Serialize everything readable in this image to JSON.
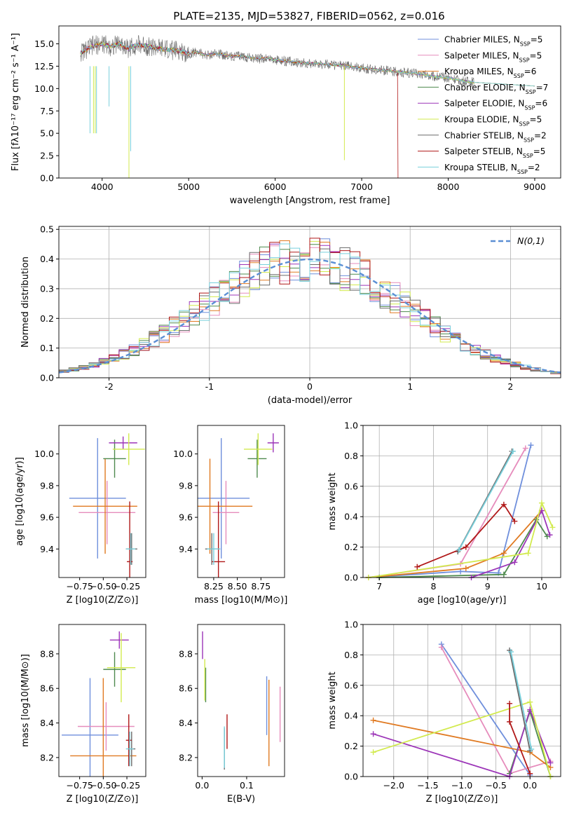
{
  "figure": {
    "title": "PLATE=2135, MJD=53827, FIBERID=0562, z=0.016"
  },
  "series": [
    {
      "name": "Chabrier MILES, N",
      "n": "5",
      "color": "#6f8fdc"
    },
    {
      "name": "Salpeter MILES, N",
      "n": "5",
      "color": "#e68cbc"
    },
    {
      "name": "Kroupa MILES, N",
      "n": "6",
      "color": "#e07a22"
    },
    {
      "name": "Chabrier ELODIE, N",
      "n": "7",
      "color": "#4e8a4e"
    },
    {
      "name": "Salpeter ELODIE, N",
      "n": "6",
      "color": "#9c35b8"
    },
    {
      "name": "Kroupa ELODIE, N",
      "n": "5",
      "color": "#d2ea4e"
    },
    {
      "name": "Chabrier STELIB, N",
      "n": "2",
      "color": "#6b6b6b"
    },
    {
      "name": "Salpeter STELIB, N",
      "n": "5",
      "color": "#b01818"
    },
    {
      "name": "Kroupa STELIB, N",
      "n": "2",
      "color": "#78d0dc"
    }
  ],
  "legend_sub": "SSP",
  "chart_data": [
    {
      "type": "line",
      "xlabel": "wavelength [Angstrom, rest frame]",
      "ylabel": "Flux [fλ10⁻¹⁷ erg cm⁻² s⁻¹ A⁻¹]",
      "xlim": [
        3500,
        9300
      ],
      "ylim": [
        0,
        17
      ],
      "xticks": [
        4000,
        5000,
        6000,
        7000,
        8000,
        9000
      ],
      "yticks": [
        0.0,
        2.5,
        5.0,
        7.5,
        10.0,
        12.5,
        15.0
      ],
      "x": [
        3750,
        3900,
        4000,
        4100,
        4200,
        4300,
        4400,
        4500,
        4600,
        4700,
        4800,
        4900,
        5000,
        5100,
        5200,
        5300,
        5400,
        5500,
        5600,
        5700,
        5800,
        5900,
        6000,
        6100,
        6200,
        6300,
        6400,
        6500,
        6600,
        6700,
        6800,
        6900,
        7000,
        7100,
        7200,
        7300,
        7400,
        7500,
        7600,
        7700,
        7800,
        7900,
        8000,
        8100,
        8200,
        8300
      ],
      "y": [
        14.0,
        14.8,
        15.0,
        14.7,
        15.0,
        14.5,
        14.9,
        14.8,
        14.6,
        14.4,
        14.3,
        14.2,
        13.9,
        14.1,
        13.7,
        13.9,
        13.8,
        13.6,
        13.6,
        13.5,
        13.3,
        13.4,
        13.2,
        13.1,
        13.0,
        12.9,
        12.8,
        12.8,
        12.7,
        12.6,
        12.6,
        12.4,
        12.3,
        12.2,
        12.1,
        12.0,
        11.9,
        11.8,
        11.7,
        11.6,
        11.4,
        11.3,
        11.2,
        11.0,
        10.8,
        10.7
      ]
    },
    {
      "type": "bar",
      "xlabel": "(data-model)/error",
      "ylabel": "Normed distribution",
      "xlim": [
        -2.5,
        2.5
      ],
      "ylim": [
        0,
        0.51
      ],
      "xticks": [
        -2,
        -1,
        0,
        1,
        2
      ],
      "yticks": [
        0.0,
        0.1,
        0.2,
        0.3,
        0.4,
        0.5
      ],
      "bin_width": 0.1,
      "bins_start": -2.5,
      "legend": "N(0,1)",
      "reference_curve": "gaussian mean 0 sigma 1"
    },
    {
      "type": "scatter",
      "name": "age vs Z",
      "xlabel": "Z [log10(Z/Z⊙)]",
      "ylabel": "age  [log10(age/yr)]",
      "xlim": [
        -0.97,
        -0.05
      ],
      "ylim": [
        9.22,
        10.18
      ],
      "xticks": [
        -0.75,
        -0.5,
        -0.25
      ],
      "yticks": [
        9.4,
        9.6,
        9.8,
        10.0
      ],
      "points": [
        {
          "s": 0,
          "x": -0.56,
          "y": 9.72,
          "xerr": 0.3,
          "yerr": 0.38
        },
        {
          "s": 1,
          "x": -0.46,
          "y": 9.63,
          "xerr": 0.3,
          "yerr": 0.2
        },
        {
          "s": 2,
          "x": -0.48,
          "y": 9.67,
          "xerr": 0.34,
          "yerr": 0.3
        },
        {
          "s": 3,
          "x": -0.38,
          "y": 9.97,
          "xerr": 0.12,
          "yerr": 0.12
        },
        {
          "s": 4,
          "x": -0.29,
          "y": 10.07,
          "xerr": 0.15,
          "yerr": 0.04
        },
        {
          "s": 5,
          "x": -0.23,
          "y": 10.03,
          "xerr": 0.17,
          "yerr": 0.1
        },
        {
          "s": 6,
          "x": -0.2,
          "y": 9.4,
          "xerr": 0.06,
          "yerr": 0.1
        },
        {
          "s": 7,
          "x": -0.22,
          "y": 9.32,
          "xerr": 0.03,
          "yerr": 0.38
        },
        {
          "s": 8,
          "x": -0.21,
          "y": 9.4,
          "xerr": 0.05,
          "yerr": 0.1
        }
      ]
    },
    {
      "type": "scatter",
      "name": "age vs mass",
      "xlabel": "mass [log10(M/M⊙)]",
      "ylabel": "",
      "xlim": [
        8.08,
        9.0
      ],
      "ylim": [
        9.22,
        10.18
      ],
      "xticks": [
        8.25,
        8.5,
        8.75
      ],
      "yticks": [
        9.4,
        9.6,
        9.8,
        10.0
      ],
      "points": [
        {
          "s": 0,
          "x": 8.33,
          "y": 9.72,
          "xerr": 0.3,
          "yerr": 0.38
        },
        {
          "s": 1,
          "x": 8.38,
          "y": 9.63,
          "xerr": 0.14,
          "yerr": 0.2
        },
        {
          "s": 2,
          "x": 8.21,
          "y": 9.67,
          "xerr": 0.45,
          "yerr": 0.3
        },
        {
          "s": 3,
          "x": 8.71,
          "y": 9.97,
          "xerr": 0.1,
          "yerr": 0.12
        },
        {
          "s": 4,
          "x": 8.88,
          "y": 10.07,
          "xerr": 0.06,
          "yerr": 0.06
        },
        {
          "s": 5,
          "x": 8.72,
          "y": 10.03,
          "xerr": 0.15,
          "yerr": 0.1
        },
        {
          "s": 6,
          "x": 8.23,
          "y": 9.4,
          "xerr": 0.07,
          "yerr": 0.1
        },
        {
          "s": 7,
          "x": 8.3,
          "y": 9.32,
          "xerr": 0.07,
          "yerr": 0.38
        },
        {
          "s": 8,
          "x": 8.25,
          "y": 9.4,
          "xerr": 0.07,
          "yerr": 0.1
        }
      ]
    },
    {
      "type": "line",
      "name": "mass weight vs age",
      "xlabel": "age  [log10(age/yr)]",
      "ylabel": "mass weight",
      "xlim": [
        6.7,
        10.35
      ],
      "ylim": [
        0,
        1
      ],
      "xticks": [
        7,
        8,
        9,
        10
      ],
      "yticks": [
        0.0,
        0.2,
        0.4,
        0.6,
        0.8,
        1.0
      ],
      "series": [
        {
          "s": 0,
          "x": [
            6.8,
            8.5,
            9.2,
            9.8
          ],
          "y": [
            0.0,
            0.04,
            0.03,
            0.87
          ]
        },
        {
          "s": 1,
          "x": [
            6.8,
            8.5,
            9.7
          ],
          "y": [
            0.0,
            0.09,
            0.85
          ]
        },
        {
          "s": 2,
          "x": [
            6.8,
            8.6,
            9.3,
            10.0
          ],
          "y": [
            0.0,
            0.06,
            0.16,
            0.44
          ]
        },
        {
          "s": 3,
          "x": [
            7.0,
            9.3,
            9.9,
            10.1
          ],
          "y": [
            0.0,
            0.02,
            0.38,
            0.27
          ]
        },
        {
          "s": 4,
          "x": [
            8.7,
            9.5,
            10.0,
            10.15
          ],
          "y": [
            0.0,
            0.1,
            0.44,
            0.28
          ]
        },
        {
          "s": 5,
          "x": [
            6.8,
            9.75,
            10.0,
            10.2
          ],
          "y": [
            0.0,
            0.16,
            0.49,
            0.33
          ]
        },
        {
          "s": 6,
          "x": [
            8.45,
            9.45
          ],
          "y": [
            0.17,
            0.83
          ]
        },
        {
          "s": 7,
          "x": [
            7.7,
            8.6,
            9.3,
            9.5
          ],
          "y": [
            0.07,
            0.2,
            0.48,
            0.37
          ]
        },
        {
          "s": 8,
          "x": [
            8.47,
            9.47
          ],
          "y": [
            0.18,
            0.83
          ]
        }
      ]
    },
    {
      "type": "scatter",
      "name": "mass vs Z",
      "xlabel": "Z [log10(Z/Z⊙)]",
      "ylabel": "mass [log10(M/M⊙)]",
      "xlim": [
        -0.97,
        -0.05
      ],
      "ylim": [
        8.09,
        8.97
      ],
      "xticks": [
        -0.75,
        -0.5,
        -0.25
      ],
      "yticks": [
        8.2,
        8.4,
        8.6,
        8.8
      ],
      "points": [
        {
          "s": 0,
          "x": -0.64,
          "y": 8.33,
          "xerr": 0.3,
          "yerr": 0.33
        },
        {
          "s": 1,
          "x": -0.47,
          "y": 8.38,
          "xerr": 0.3,
          "yerr": 0.14
        },
        {
          "s": 2,
          "x": -0.5,
          "y": 8.21,
          "xerr": 0.35,
          "yerr": 0.45
        },
        {
          "s": 3,
          "x": -0.38,
          "y": 8.71,
          "xerr": 0.12,
          "yerr": 0.1
        },
        {
          "s": 4,
          "x": -0.33,
          "y": 8.88,
          "xerr": 0.1,
          "yerr": 0.05
        },
        {
          "s": 5,
          "x": -0.31,
          "y": 8.72,
          "xerr": 0.15,
          "yerr": 0.2
        },
        {
          "s": 6,
          "x": -0.2,
          "y": 8.25,
          "xerr": 0.04,
          "yerr": 0.1
        },
        {
          "s": 7,
          "x": -0.23,
          "y": 8.3,
          "xerr": 0.03,
          "yerr": 0.15
        },
        {
          "s": 8,
          "x": -0.22,
          "y": 8.25,
          "xerr": 0.04,
          "yerr": 0.1
        }
      ]
    },
    {
      "type": "scatter",
      "name": "mass vs E(B-V)",
      "xlabel": "E(B-V)",
      "ylabel": "",
      "xlim": [
        -0.01,
        0.185
      ],
      "ylim": [
        8.09,
        8.97
      ],
      "xticks": [
        0.0,
        0.1
      ],
      "yticks": [
        8.2,
        8.4,
        8.6,
        8.8
      ],
      "points": [
        {
          "s": 0,
          "x": 0.145,
          "y": 8.5,
          "xerr": 0,
          "yerr": 0.17
        },
        {
          "s": 1,
          "x": 0.175,
          "y": 8.45,
          "xerr": 0,
          "yerr": 0.16
        },
        {
          "s": 2,
          "x": 0.15,
          "y": 8.4,
          "xerr": 0,
          "yerr": 0.25
        },
        {
          "s": 3,
          "x": 0.008,
          "y": 8.62,
          "xerr": 0,
          "yerr": 0.1
        },
        {
          "s": 4,
          "x": 0.001,
          "y": 8.85,
          "xerr": 0,
          "yerr": 0.08
        },
        {
          "s": 5,
          "x": 0.006,
          "y": 8.65,
          "xerr": 0,
          "yerr": 0.12
        },
        {
          "s": 6,
          "x": 0.05,
          "y": 8.25,
          "xerr": 0,
          "yerr": 0.12
        },
        {
          "s": 7,
          "x": 0.056,
          "y": 8.35,
          "xerr": 0,
          "yerr": 0.1
        },
        {
          "s": 8,
          "x": 0.05,
          "y": 8.26,
          "xerr": 0,
          "yerr": 0.12
        }
      ]
    },
    {
      "type": "line",
      "name": "mass weight vs Z",
      "xlabel": "Z [log10(Z/Z⊙)]",
      "ylabel": "mass weight",
      "xlim": [
        -2.45,
        0.45
      ],
      "ylim": [
        0,
        1
      ],
      "xticks": [
        -2.0,
        -1.5,
        -1.0,
        -0.5,
        0.0
      ],
      "yticks": [
        0.0,
        0.2,
        0.4,
        0.6,
        0.8,
        1.0
      ],
      "series": [
        {
          "s": 0,
          "x": [
            -1.3,
            0.0
          ],
          "y": [
            0.87,
            0.01
          ]
        },
        {
          "s": 1,
          "x": [
            -1.3,
            -0.3,
            0.3
          ],
          "y": [
            0.85,
            0.02,
            0.1
          ]
        },
        {
          "s": 2,
          "x": [
            -2.3,
            0.0,
            0.3
          ],
          "y": [
            0.37,
            0.16,
            0.06
          ]
        },
        {
          "s": 3,
          "x": [
            -0.3,
            0.0,
            0.3
          ],
          "y": [
            0.02,
            0.43,
            0.0
          ]
        },
        {
          "s": 4,
          "x": [
            -2.3,
            -0.3,
            0.0,
            0.3
          ],
          "y": [
            0.28,
            0.0,
            0.44,
            0.09
          ]
        },
        {
          "s": 5,
          "x": [
            -2.3,
            0.0,
            0.3
          ],
          "y": [
            0.16,
            0.49,
            0.0
          ]
        },
        {
          "s": 6,
          "x": [
            -0.3,
            0.0
          ],
          "y": [
            0.83,
            0.17
          ]
        },
        {
          "s": 7,
          "x": [
            -0.3,
            -0.3,
            0.0
          ],
          "y": [
            0.48,
            0.36,
            0.02
          ]
        },
        {
          "s": 8,
          "x": [
            -0.28,
            0.02
          ],
          "y": [
            0.82,
            0.18
          ]
        }
      ]
    }
  ]
}
